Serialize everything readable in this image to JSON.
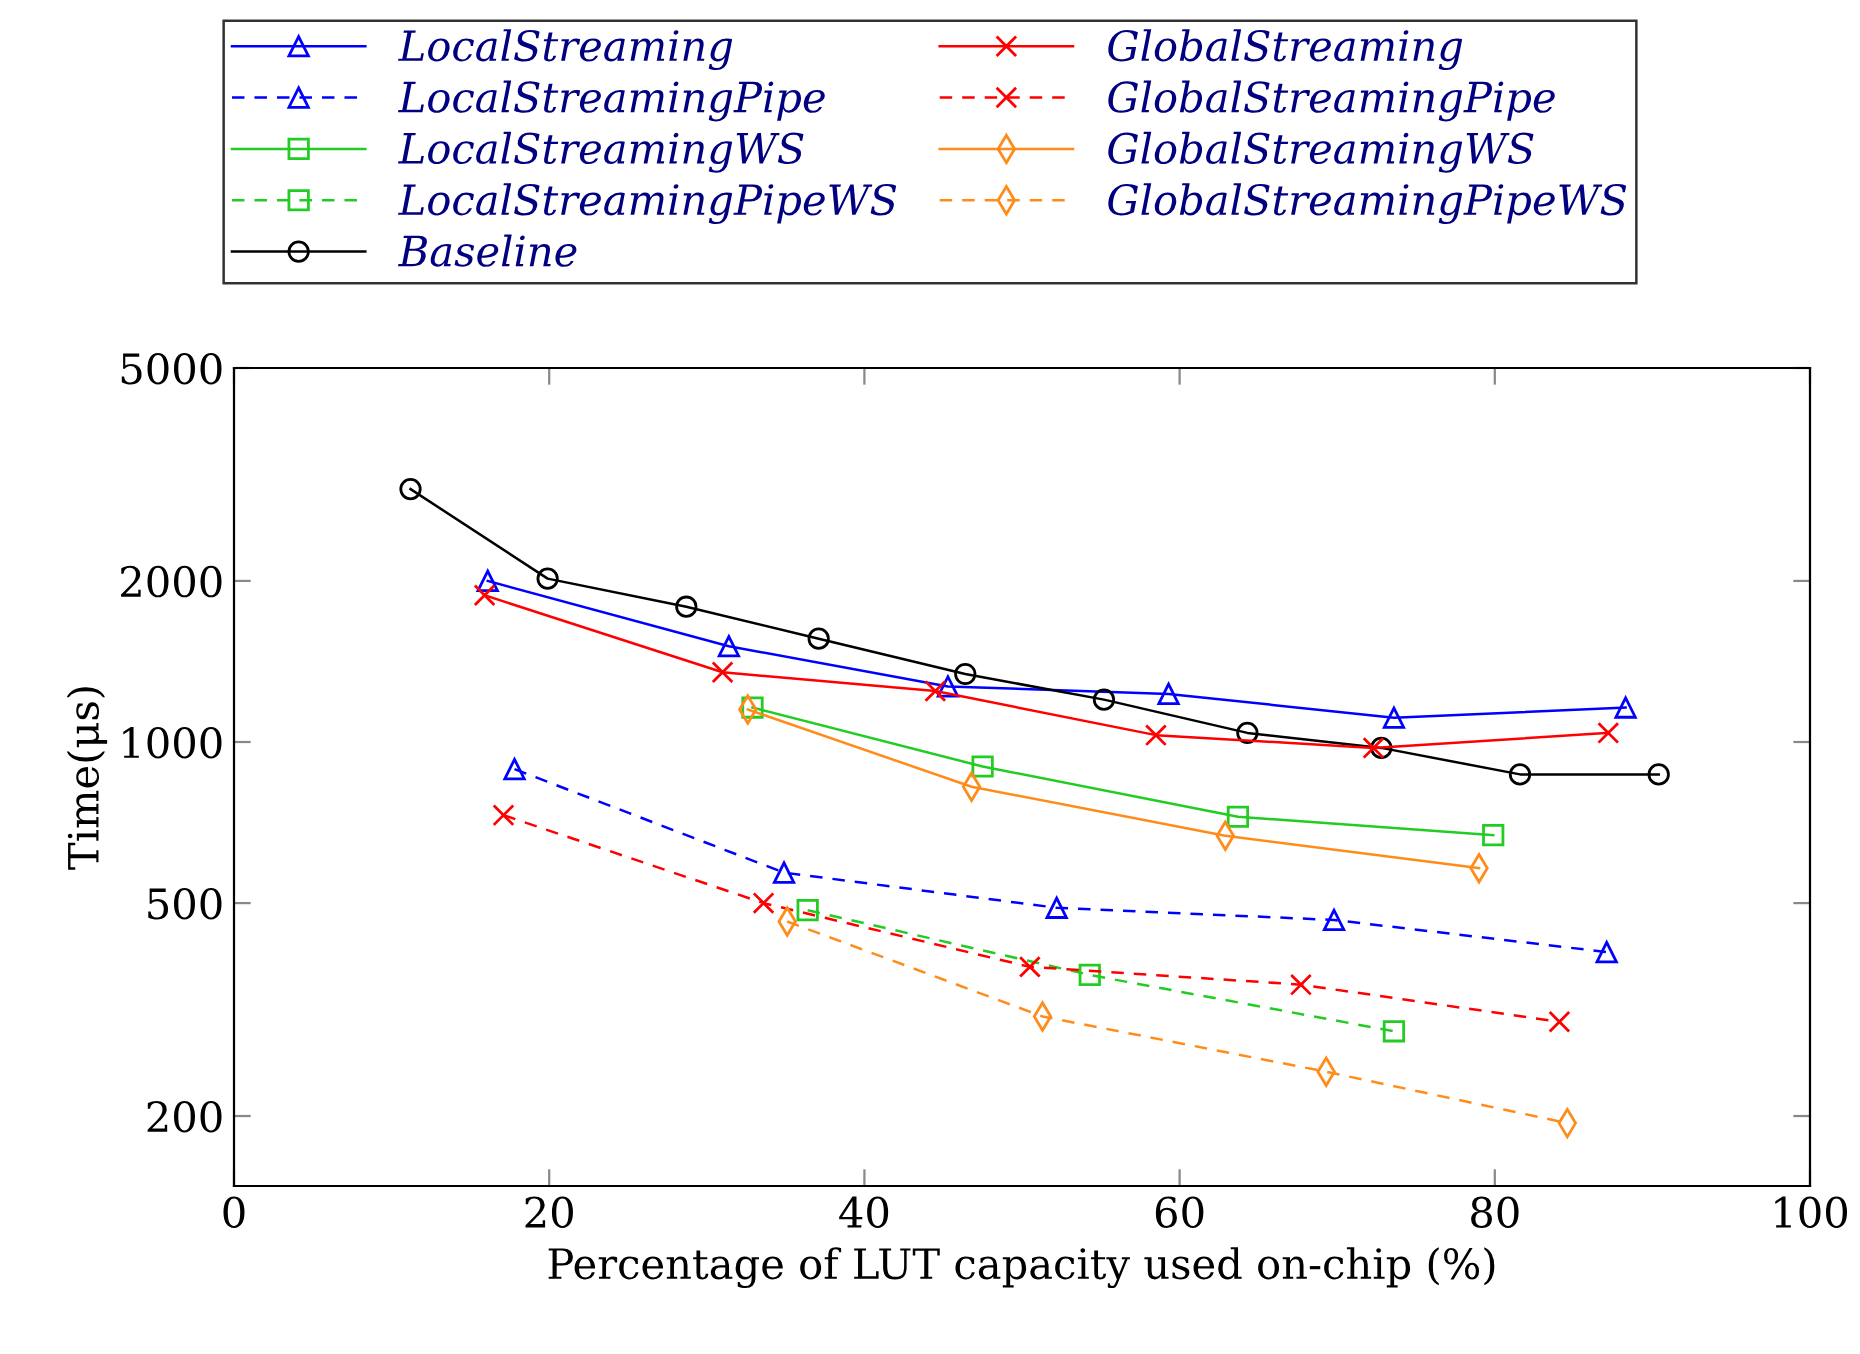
{
  "chart_data": {
    "type": "line",
    "xlabel": "Percentage of LUT capacity used on-chip (%)",
    "ylabel": "Time(μs)",
    "log": "y",
    "xlim": [
      0,
      100
    ],
    "xticks": [
      0,
      20,
      40,
      60,
      80,
      100
    ],
    "ylim": [
      148,
      5000
    ],
    "yticks": [
      200,
      500,
      1000,
      2000,
      5000
    ],
    "grid": false,
    "legend": "top",
    "series": [
      {
        "name": "LocalStreaming",
        "color": "#0000ff",
        "marker": "triangle",
        "line_style": "solid",
        "x": [
          16.1,
          31.4,
          45.3,
          59.3,
          73.6,
          88.3
        ],
        "values": [
          2000,
          1510,
          1270,
          1230,
          1110,
          1160
        ]
      },
      {
        "name": "LocalStreamingPipe",
        "color": "#0000ff",
        "marker": "triangle",
        "line_style": "dashed",
        "x": [
          17.8,
          34.9,
          52.2,
          69.8,
          87.1
        ],
        "values": [
          890,
          570,
          490,
          465,
          405
        ]
      },
      {
        "name": "LocalStreamingWS",
        "color": "#22cc22",
        "marker": "square",
        "line_style": "solid",
        "x": [
          32.9,
          47.5,
          63.7,
          79.9
        ],
        "values": [
          1160,
          900,
          725,
          670
        ]
      },
      {
        "name": "LocalStreamingPipeWS",
        "color": "#22cc22",
        "marker": "square",
        "line_style": "dashed",
        "x": [
          36.4,
          54.3,
          73.6
        ],
        "values": [
          485,
          367,
          288
        ]
      },
      {
        "name": "Baseline",
        "color": "#000000",
        "marker": "circle",
        "line_style": "solid",
        "x": [
          11.2,
          19.9,
          28.7,
          37.1,
          46.4,
          55.2,
          64.3,
          72.8,
          81.6,
          90.4
        ],
        "values": [
          2970,
          2020,
          1790,
          1560,
          1340,
          1200,
          1040,
          975,
          870,
          870
        ]
      },
      {
        "name": "GlobalStreaming",
        "color": "#ff0000",
        "marker": "cross",
        "line_style": "solid",
        "x": [
          15.9,
          31.0,
          44.5,
          58.5,
          72.3,
          87.2
        ],
        "values": [
          1880,
          1350,
          1245,
          1030,
          975,
          1040
        ]
      },
      {
        "name": "GlobalStreamingPipe",
        "color": "#ff0000",
        "marker": "cross",
        "line_style": "dashed",
        "x": [
          17.1,
          33.6,
          50.5,
          67.7,
          84.1
        ],
        "values": [
          730,
          500,
          380,
          352,
          300
        ]
      },
      {
        "name": "GlobalStreamingWS",
        "color": "#ff8c1a",
        "marker": "diamond",
        "line_style": "solid",
        "x": [
          32.6,
          46.8,
          62.9,
          79.0
        ],
        "values": [
          1150,
          825,
          668,
          581
        ]
      },
      {
        "name": "GlobalStreamingPipeWS",
        "color": "#ff8c1a",
        "marker": "diamond",
        "line_style": "dashed",
        "x": [
          35.1,
          51.3,
          69.3,
          84.6
        ],
        "values": [
          462,
          307,
          242,
          194
        ]
      }
    ]
  }
}
